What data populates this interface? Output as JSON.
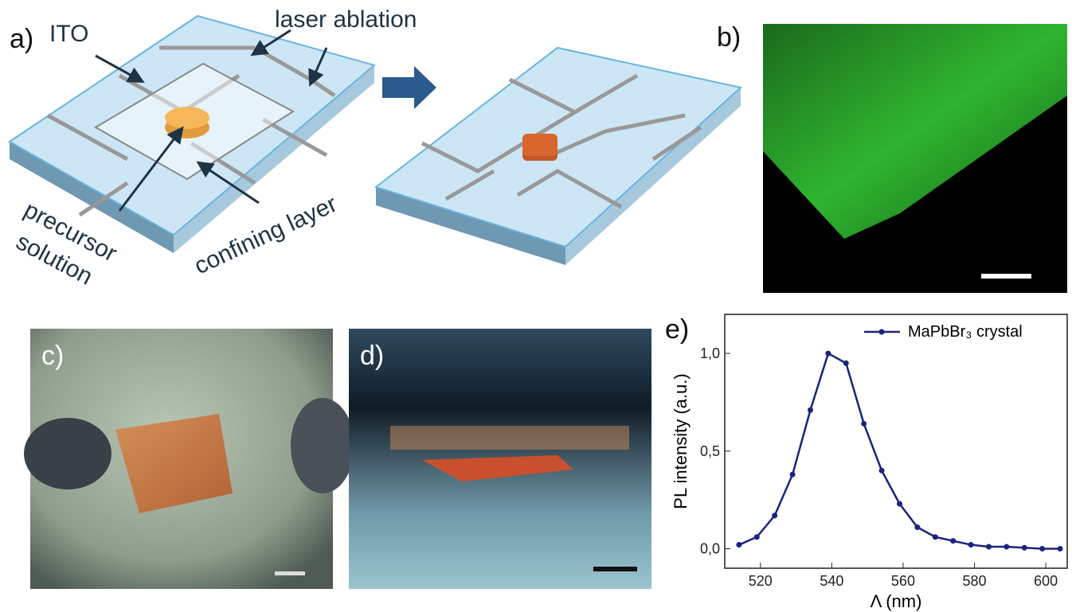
{
  "labels": {
    "a": "a)",
    "b": "b)",
    "c": "c)",
    "d": "d)",
    "e": "e)"
  },
  "annotations": {
    "ito": "ITO",
    "laser_ablation": "laser ablation",
    "precursor": "precursor",
    "solution": "solution",
    "confining_layer": "confining layer"
  },
  "chart_data": {
    "type": "line",
    "x_label": "Λ (nm)",
    "y_label": "PL intensity (a.u.)",
    "x": [
      514,
      519,
      524,
      529,
      534,
      539,
      544,
      549,
      554,
      559,
      564,
      569,
      574,
      579,
      584,
      589,
      594,
      599,
      604
    ],
    "series": [
      {
        "name": "MaPbBr₃ crystal",
        "color": "#1a237e",
        "values": [
          0.02,
          0.06,
          0.17,
          0.38,
          0.71,
          1.0,
          0.95,
          0.64,
          0.4,
          0.23,
          0.11,
          0.06,
          0.04,
          0.02,
          0.01,
          0.01,
          0.005,
          0.0,
          0.0
        ]
      }
    ],
    "xlim": [
      510,
      606
    ],
    "xticks": [
      520,
      540,
      560,
      580,
      600
    ],
    "ylim": [
      -0.1,
      1.2
    ],
    "yticks": [
      {
        "value": 0,
        "label": "0,0"
      },
      {
        "value": 0.5,
        "label": "0,5"
      },
      {
        "value": 1,
        "label": "1,0"
      }
    ],
    "legend": "upper right"
  }
}
